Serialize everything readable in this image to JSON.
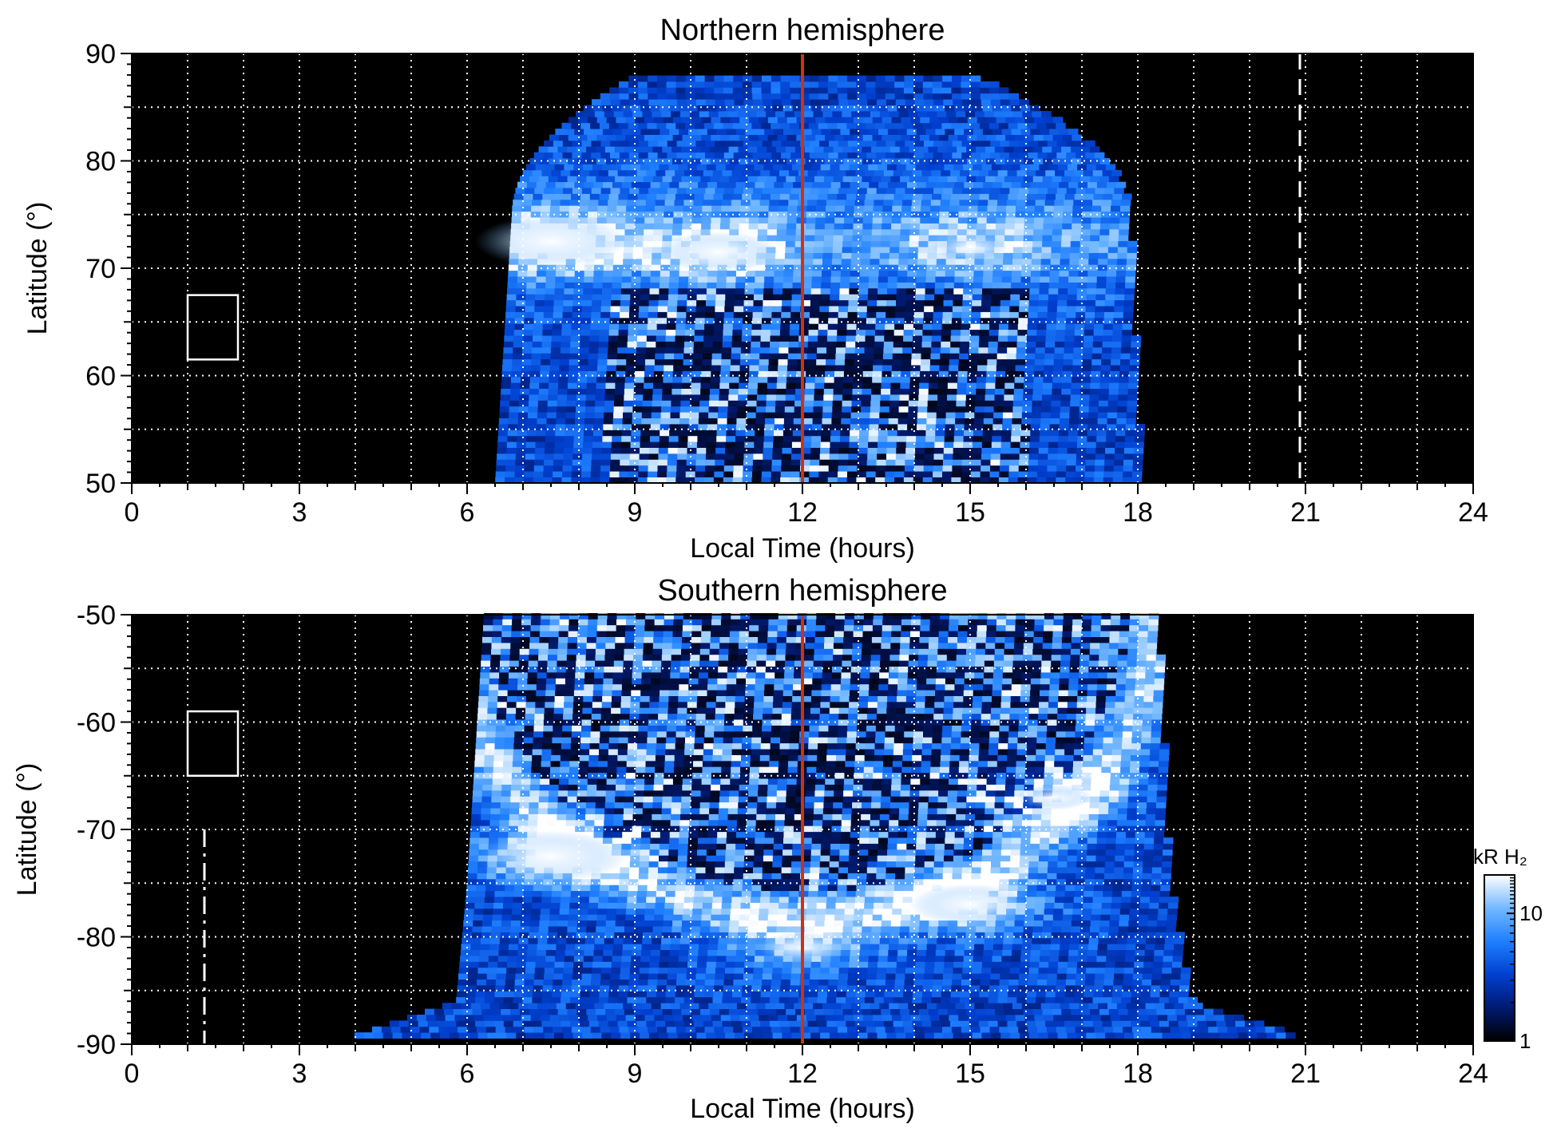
{
  "chart_data": [
    {
      "type": "heatmap",
      "title": "Northern hemisphere",
      "xlabel": "Local Time (hours)",
      "ylabel": "Latitude (°)",
      "xlim": [
        0,
        24
      ],
      "ylim": [
        50,
        90
      ],
      "x_ticks": [
        0,
        3,
        6,
        9,
        12,
        15,
        18,
        21,
        24
      ],
      "y_ticks": [
        50,
        60,
        70,
        80,
        90
      ],
      "grid": true,
      "grid_x": [
        1,
        2,
        3,
        4,
        5,
        6,
        7,
        8,
        9,
        10,
        11,
        12,
        13,
        14,
        15,
        16,
        17,
        18,
        19,
        20,
        21,
        22,
        23
      ],
      "grid_y": [
        55,
        60,
        65,
        70,
        75,
        80,
        85
      ],
      "background": "#000000",
      "coverage": {
        "lat_bottom": 50,
        "lat_shoulder": 75,
        "lat_top": 88,
        "lt_bottom_start": 6.5,
        "lt_bottom_end": 18.0,
        "lt_shoulder_start": 6.8,
        "lt_shoulder_end": 17.8,
        "lt_top_start": 9.0,
        "lt_top_end": 15.0
      },
      "bright_features": [
        {
          "lt": 7.5,
          "lat": 72.5,
          "intensity": 1.0
        },
        {
          "lt": 10.5,
          "lat": 71.5,
          "intensity": 0.8
        },
        {
          "lt": 15.0,
          "lat": 72.0,
          "intensity": 0.5
        }
      ],
      "noon_line": {
        "lt": 12,
        "color": "#cc3311"
      },
      "dashed_line": {
        "lt": 20.9,
        "lat_range": [
          50,
          90
        ]
      },
      "box": {
        "lt_range": [
          1.0,
          1.9
        ],
        "lat_range": [
          61.5,
          67.5
        ]
      }
    },
    {
      "type": "heatmap",
      "title": "Southern hemisphere",
      "xlabel": "Local Time (hours)",
      "ylabel": "Latitude (°)",
      "xlim": [
        0,
        24
      ],
      "ylim": [
        -90,
        -50
      ],
      "x_ticks": [
        0,
        3,
        6,
        9,
        12,
        15,
        18,
        21,
        24
      ],
      "y_ticks": [
        -90,
        -80,
        -70,
        -60,
        -50
      ],
      "grid": true,
      "grid_x": [
        1,
        2,
        3,
        4,
        5,
        6,
        7,
        8,
        9,
        10,
        11,
        12,
        13,
        14,
        15,
        16,
        17,
        18,
        19,
        20,
        21,
        22,
        23
      ],
      "grid_y": [
        -85,
        -80,
        -75,
        -70,
        -65,
        -60,
        -55
      ],
      "background": "#000000",
      "coverage": {
        "lat_top": -50,
        "lt_top_start": 6.3,
        "lt_top_end": 18.3,
        "lat_mid": -75,
        "lt_mid_start": 6.0,
        "lt_mid_end": 18.5,
        "lat_low": -86,
        "lt_low_start": 5.8,
        "lt_low_end": 18.9,
        "lat_bottom": -89.5,
        "lt_bottom_start": 3.8,
        "lt_bottom_end": 21.0
      },
      "oval": {
        "center_lt": 12,
        "center_lat": -50,
        "radius_lt": 6.3,
        "radius_lat": 28
      },
      "bright_features": [
        {
          "lt": 7.5,
          "lat": -72.5,
          "intensity": 1.0
        },
        {
          "lt": 15.0,
          "lat": -77.0,
          "intensity": 0.8
        },
        {
          "lt": 16.5,
          "lat": -67.0,
          "intensity": 0.5
        },
        {
          "lt": 12.0,
          "lat": -81.0,
          "intensity": 0.6
        }
      ],
      "noon_line": {
        "lt": 12,
        "color": "#cc3311"
      },
      "dashdot_line": {
        "lt": 1.3,
        "lat_range": [
          -90,
          -70
        ]
      },
      "box": {
        "lt_range": [
          1.0,
          1.9
        ],
        "lat_range": [
          -65,
          -59
        ]
      },
      "colorbar": {
        "label": "kR H₂",
        "scale": "log",
        "range": [
          1,
          20
        ],
        "ticks": [
          1,
          10
        ],
        "colormap": [
          "#000000",
          "#001a70",
          "#0040d0",
          "#1f7fff",
          "#73b8ff",
          "#ffffff"
        ]
      }
    }
  ]
}
